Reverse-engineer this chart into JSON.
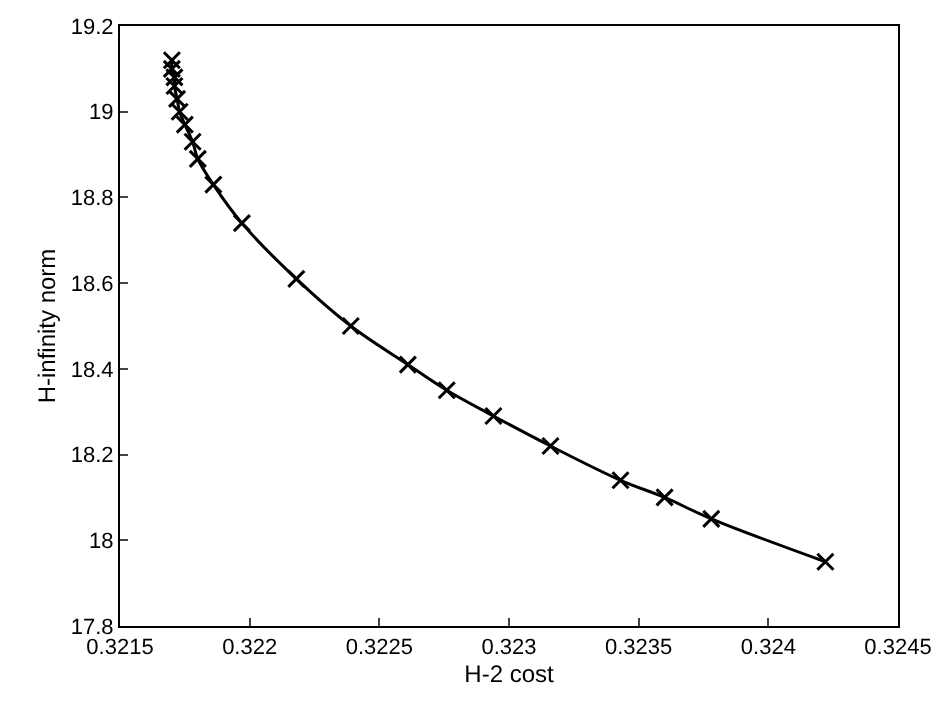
{
  "chart_data": {
    "type": "line",
    "xlabel": "H-2 cost",
    "ylabel": "H-infinity norm",
    "x": [
      0.3217,
      0.3217,
      0.32171,
      0.32171,
      0.32172,
      0.32173,
      0.32175,
      0.32178,
      0.3218,
      0.32186,
      0.32197,
      0.32218,
      0.32239,
      0.32261,
      0.32276,
      0.32294,
      0.32316,
      0.32343,
      0.3236,
      0.32378,
      0.32422
    ],
    "series": [
      {
        "color": "#000000",
        "values": [
          19.12,
          19.1,
          19.08,
          19.06,
          19.03,
          19.0,
          18.97,
          18.93,
          18.89,
          18.83,
          18.74,
          18.61,
          18.5,
          18.41,
          18.35,
          18.29,
          18.22,
          18.14,
          18.1,
          18.05,
          17.95
        ]
      }
    ],
    "xlim": [
      0.3215,
      0.3245
    ],
    "xticks": [
      0.3215,
      0.322,
      0.3225,
      0.323,
      0.3235,
      0.324,
      0.3245
    ],
    "ylim": [
      17.8,
      19.2
    ],
    "yticks": [
      17.8,
      18,
      18.2,
      18.4,
      18.6,
      18.8,
      19,
      19.2
    ],
    "marker": "cross",
    "line_style": "solid"
  }
}
